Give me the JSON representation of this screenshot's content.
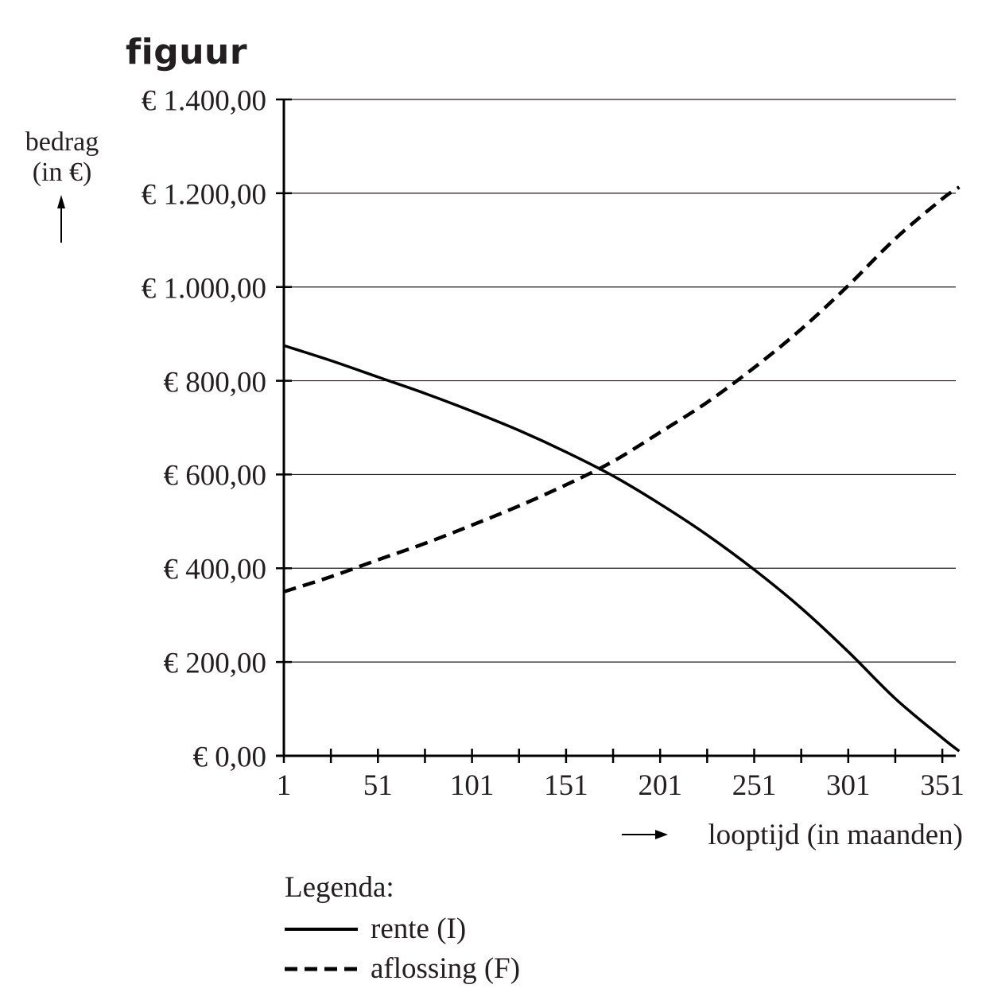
{
  "figure": {
    "title": "figuur",
    "y_axis_label_line1": "bedrag",
    "y_axis_label_line2": "(in €)",
    "y_axis_arrow": "↑",
    "x_axis_label": "looptijd (in maanden)",
    "x_axis_arrow": "⟶",
    "y_ticks": [
      "€ 0,00",
      "€ 200,00",
      "€ 400,00",
      "€ 600,00",
      "€ 800,00",
      "€ 1.000,00",
      "€ 1.200,00",
      "€ 1.400,00"
    ],
    "x_ticks": [
      "1",
      "51",
      "101",
      "151",
      "201",
      "251",
      "301",
      "351"
    ],
    "legend": {
      "title": "Legenda:",
      "items": [
        {
          "label": "rente (I)",
          "style": "solid"
        },
        {
          "label": "aflossing (F)",
          "style": "dashed"
        }
      ]
    },
    "colors": {
      "line": "#000000",
      "text": "#231f20",
      "grid": "#231f20",
      "background": "#ffffff"
    }
  },
  "chart_data": {
    "type": "line",
    "title": "figuur",
    "xlabel": "looptijd (in maanden)",
    "ylabel": "bedrag (in €)",
    "x": [
      1,
      26,
      51,
      76,
      101,
      126,
      151,
      176,
      201,
      226,
      251,
      276,
      301,
      326,
      351,
      360
    ],
    "series": [
      {
        "name": "rente (I)",
        "style": "solid",
        "values": [
          875,
          843,
          808,
          773,
          735,
          694,
          648,
          597,
          537,
          471,
          397,
          315,
          222,
          122,
          38,
          10
        ]
      },
      {
        "name": "aflossing (F)",
        "style": "dashed",
        "values": [
          350,
          382,
          418,
          453,
          492,
          533,
          578,
          628,
          690,
          754,
          828,
          910,
          1003,
          1103,
          1188,
          1213
        ]
      }
    ],
    "xlim": [
      1,
      360
    ],
    "ylim": [
      0,
      1400
    ],
    "y_tick_values": [
      0,
      200,
      400,
      600,
      800,
      1000,
      1200,
      1400
    ],
    "x_tick_values": [
      1,
      51,
      101,
      151,
      201,
      251,
      301,
      351
    ],
    "x_minor_ticks_every": 25,
    "grid": "horizontal",
    "legend_position": "below"
  }
}
